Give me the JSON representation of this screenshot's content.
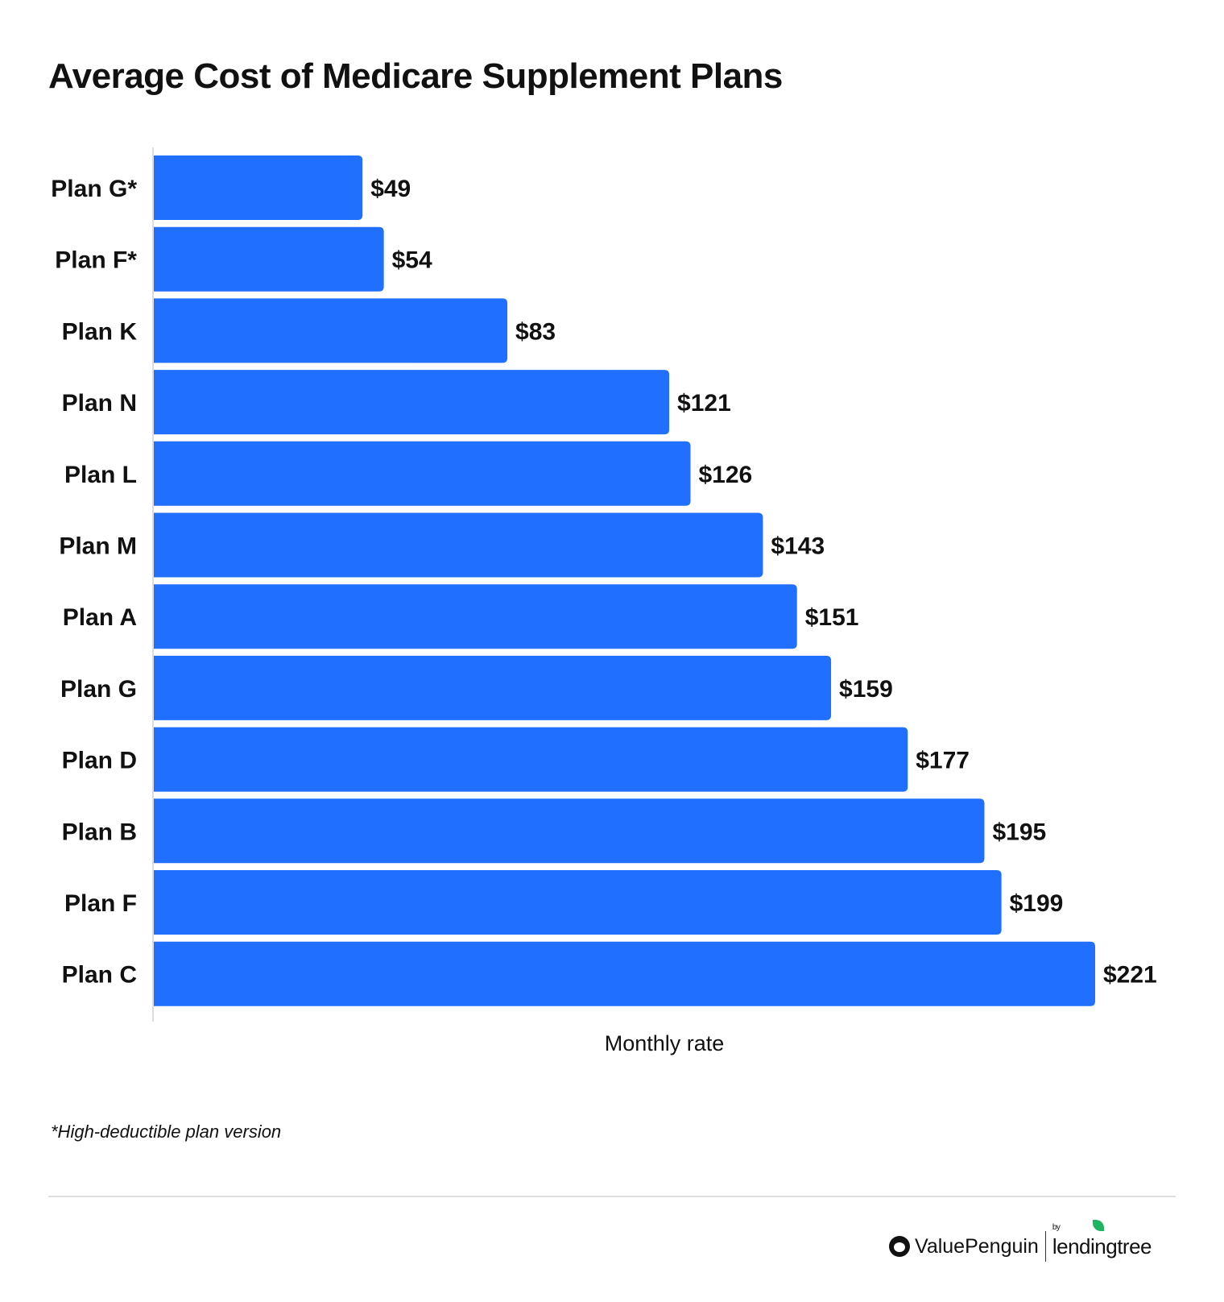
{
  "chart_data": {
    "type": "bar",
    "orientation": "horizontal",
    "title": "Average Cost of Medicare Supplement Plans",
    "xlabel": "Monthly rate",
    "ylabel": "",
    "categories": [
      "Plan G*",
      "Plan F*",
      "Plan K",
      "Plan N",
      "Plan L",
      "Plan M",
      "Plan A",
      "Plan G",
      "Plan D",
      "Plan B",
      "Plan F",
      "Plan C"
    ],
    "values": [
      49,
      54,
      83,
      121,
      126,
      143,
      151,
      159,
      177,
      195,
      199,
      221
    ],
    "data_labels": [
      "$49",
      "$54",
      "$83",
      "$121",
      "$126",
      "$143",
      "$151",
      "$159",
      "$177",
      "$195",
      "$199",
      "$221"
    ],
    "xlim": [
      0,
      221
    ],
    "grid": false,
    "bar_color": "#216ffe"
  },
  "footnote": "*High-deductible plan version",
  "branding": {
    "brand": "ValuePenguin",
    "by": "by",
    "partner": "lendingtree"
  }
}
